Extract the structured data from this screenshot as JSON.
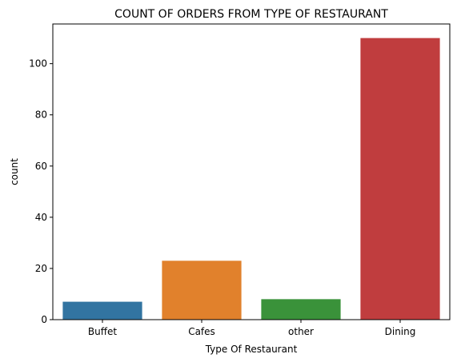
{
  "chart_data": {
    "type": "bar",
    "title": "COUNT OF ORDERS FROM TYPE OF RESTAURANT",
    "xlabel": "Type Of Restaurant",
    "ylabel": "count",
    "categories": [
      "Buffet",
      "Cafes",
      "other",
      "Dining"
    ],
    "values": [
      7,
      23,
      8,
      110
    ],
    "colors": [
      "#3274a1",
      "#e1812c",
      "#3a923a",
      "#c03d3e"
    ],
    "ylim": [
      0,
      115.5
    ],
    "yticks": [
      0,
      20,
      40,
      60,
      80,
      100
    ],
    "grid": false,
    "legend": "none"
  }
}
